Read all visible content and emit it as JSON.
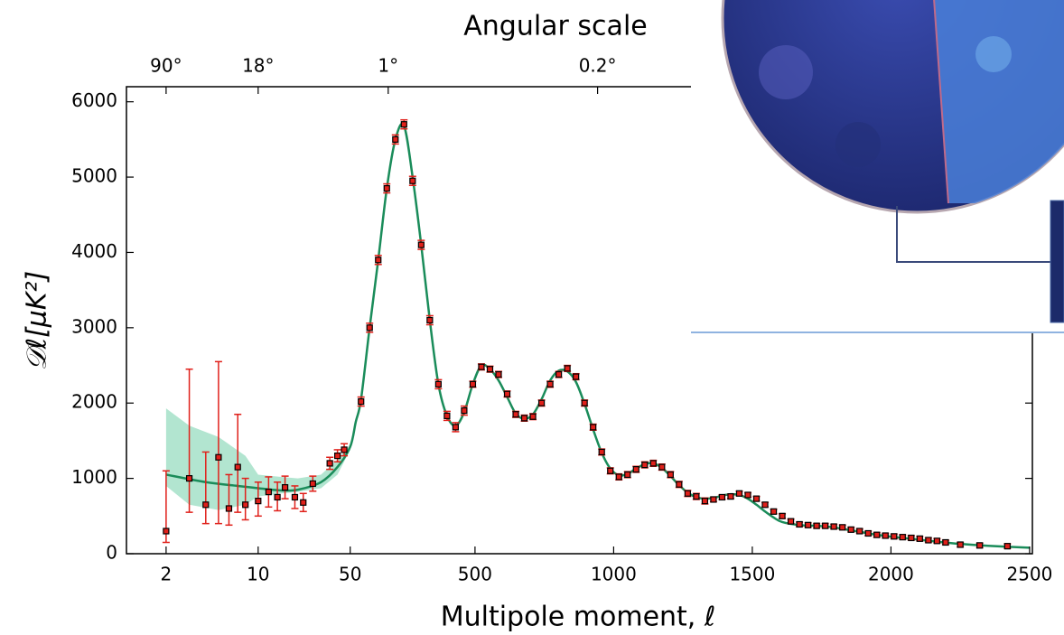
{
  "chart_data": {
    "type": "scatter",
    "title": "Angular scale",
    "x_label": "Multipole moment, ℓ",
    "y_label": "𝒟ℓ[μK²]",
    "xscale": {
      "type": "log-linear",
      "switch": 50
    },
    "xlim": [
      1,
      2510
    ],
    "ylim": [
      0,
      6200
    ],
    "xticks": [
      2,
      10,
      50,
      500,
      1000,
      1500,
      2000,
      2500
    ],
    "yticks": [
      0,
      1000,
      2000,
      3000,
      4000,
      5000,
      6000
    ],
    "x2ticks": [
      {
        "value": 2,
        "label": "90°"
      },
      {
        "value": 10,
        "label": "18°"
      },
      {
        "value": 187,
        "label": "1°"
      },
      {
        "value": 942,
        "label": "0.2°"
      }
    ],
    "points": {
      "color": "#e0201a",
      "x": [
        2,
        3,
        4,
        5,
        6,
        7,
        8,
        10,
        12,
        14,
        16,
        19,
        22,
        26,
        35,
        40,
        45,
        89,
        120,
        151,
        182,
        213,
        244,
        275,
        306,
        337,
        368,
        399,
        430,
        461,
        492,
        523,
        554,
        585,
        616,
        647,
        678,
        709,
        740,
        771,
        802,
        833,
        864,
        895,
        926,
        957,
        988,
        1019,
        1050,
        1081,
        1112,
        1143,
        1174,
        1205,
        1236,
        1267,
        1298,
        1329,
        1360,
        1391,
        1422,
        1453,
        1484,
        1515,
        1546,
        1577,
        1608,
        1639,
        1670,
        1701,
        1732,
        1763,
        1794,
        1825,
        1856,
        1887,
        1918,
        1949,
        1980,
        2011,
        2042,
        2073,
        2104,
        2135,
        2166,
        2197,
        2250,
        2320,
        2420
      ],
      "values": [
        300,
        1000,
        650,
        1280,
        600,
        1150,
        650,
        700,
        820,
        750,
        880,
        750,
        680,
        930,
        1200,
        1300,
        1380,
        2020,
        3000,
        3900,
        4850,
        5500,
        5700,
        4950,
        4100,
        3100,
        2250,
        1830,
        1680,
        1900,
        2250,
        2480,
        2450,
        2380,
        2120,
        1850,
        1800,
        1820,
        2000,
        2250,
        2380,
        2460,
        2350,
        2000,
        1680,
        1350,
        1100,
        1020,
        1050,
        1120,
        1180,
        1200,
        1150,
        1050,
        920,
        800,
        760,
        700,
        720,
        750,
        760,
        800,
        780,
        730,
        650,
        560,
        500,
        430,
        390,
        380,
        370,
        370,
        360,
        350,
        320,
        300,
        270,
        250,
        240,
        230,
        220,
        210,
        200,
        180,
        170,
        150,
        120,
        110,
        100
      ],
      "err_minus": [
        150,
        450,
        250,
        880,
        220,
        600,
        200,
        200,
        200,
        180,
        150,
        150,
        120,
        100,
        80,
        80,
        80,
        60,
        60,
        60,
        60,
        60,
        60,
        60,
        60,
        60,
        60,
        60,
        60,
        60,
        40,
        40,
        40,
        40,
        40,
        40,
        40,
        40,
        40,
        40,
        40,
        40,
        40,
        40,
        40,
        40,
        40,
        40,
        40,
        40,
        40,
        40,
        40,
        40,
        40,
        40,
        40,
        40,
        30,
        30,
        30,
        30,
        30,
        30,
        30,
        30,
        30,
        30,
        30,
        30,
        30,
        30,
        30,
        30,
        30,
        30,
        30,
        30,
        30,
        30,
        30,
        30,
        30,
        30,
        30,
        30,
        30,
        30,
        30
      ],
      "err_plus": [
        800,
        1450,
        700,
        1270,
        450,
        700,
        350,
        250,
        200,
        200,
        150,
        150,
        120,
        100,
        80,
        80,
        80,
        60,
        60,
        60,
        60,
        60,
        60,
        60,
        60,
        60,
        60,
        60,
        60,
        60,
        40,
        40,
        40,
        40,
        40,
        40,
        40,
        40,
        40,
        40,
        40,
        40,
        40,
        40,
        40,
        40,
        40,
        40,
        40,
        40,
        40,
        40,
        40,
        40,
        40,
        40,
        40,
        40,
        30,
        30,
        30,
        30,
        30,
        30,
        30,
        30,
        30,
        30,
        30,
        30,
        30,
        30,
        30,
        30,
        30,
        30,
        30,
        30,
        30,
        30,
        30,
        30,
        30,
        30,
        30,
        30,
        30,
        30,
        30
      ]
    },
    "model": {
      "color": "#1a8c5a",
      "x": [
        2,
        4,
        7,
        10,
        15,
        20,
        30,
        40,
        50,
        70,
        89,
        120,
        151,
        182,
        213,
        244,
        275,
        306,
        337,
        368,
        399,
        430,
        461,
        492,
        523,
        554,
        585,
        616,
        647,
        678,
        709,
        740,
        771,
        802,
        833,
        864,
        895,
        926,
        957,
        988,
        1019,
        1050,
        1081,
        1112,
        1143,
        1174,
        1205,
        1236,
        1267,
        1298,
        1329,
        1360,
        1391,
        1422,
        1453,
        1484,
        1515,
        1546,
        1577,
        1608,
        1670,
        1732,
        1794,
        1856,
        1918,
        1980,
        2042,
        2104,
        2166,
        2250,
        2350,
        2500
      ],
      "values": [
        1050,
        950,
        900,
        870,
        840,
        850,
        950,
        1150,
        1420,
        1750,
        2050,
        3000,
        3900,
        4850,
        5500,
        5680,
        5000,
        4100,
        3100,
        2250,
        1830,
        1700,
        1880,
        2250,
        2500,
        2450,
        2300,
        2080,
        1860,
        1790,
        1850,
        2050,
        2300,
        2430,
        2420,
        2280,
        1990,
        1650,
        1340,
        1130,
        1040,
        1060,
        1130,
        1190,
        1200,
        1140,
        1030,
        910,
        810,
        750,
        730,
        740,
        770,
        790,
        780,
        730,
        650,
        560,
        480,
        420,
        380,
        370,
        350,
        310,
        270,
        235,
        210,
        185,
        160,
        130,
        105,
        80
      ]
    },
    "band": {
      "color": "#7fd3b0",
      "x": [
        2,
        3,
        5,
        8,
        10,
        15,
        20,
        30,
        40,
        50
      ],
      "upper": [
        1930,
        1700,
        1550,
        1300,
        1050,
        1020,
        1000,
        1050,
        1250,
        1450
      ],
      "lower": [
        900,
        650,
        580,
        650,
        760,
        800,
        820,
        870,
        1050,
        1380
      ]
    }
  }
}
